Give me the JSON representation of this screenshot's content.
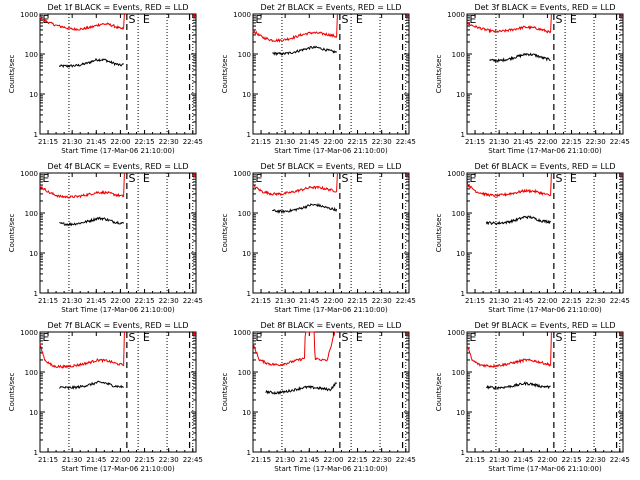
{
  "figure": {
    "x_tick_labels": [
      "21:15",
      "21:30",
      "21:45",
      "22:00",
      "22:15",
      "22:30",
      "22:45"
    ],
    "y_tick_labels": [
      "1",
      "10",
      "100",
      "1000"
    ],
    "ylabel": "Counts/sec",
    "marker_labels": [
      "E",
      "S",
      "E"
    ],
    "colors": {
      "events": "#000000",
      "lld": "#ee0000",
      "axes": "#000000"
    }
  },
  "chart_data": [
    {
      "type": "line",
      "title": "Det 1f BLACK = Events, RED = LLD",
      "xlabel": "Start Time (17-Mar-06 21:10:00)",
      "ylabel": "Counts/sec",
      "xlim_min": [
        0,
        97
      ],
      "ylim": [
        1,
        1000
      ],
      "y_scale": "log",
      "markers_min": {
        "dotted": [
          18,
          61,
          79,
          95
        ],
        "dashed": [
          54,
          93
        ]
      },
      "series": [
        {
          "name": "Events",
          "color": "#000000",
          "x_range_min": [
            12,
            52
          ],
          "knots": [
            [
              12,
              50
            ],
            [
              18,
              50
            ],
            [
              24,
              52
            ],
            [
              30,
              60
            ],
            [
              35,
              72
            ],
            [
              40,
              72
            ],
            [
              45,
              60
            ],
            [
              50,
              52
            ],
            [
              52,
              55
            ]
          ]
        },
        {
          "name": "LLD",
          "color": "#ee0000",
          "x_range_min": [
            0,
            52
          ],
          "knots": [
            [
              0,
              820
            ],
            [
              4,
              650
            ],
            [
              10,
              520
            ],
            [
              20,
              420
            ],
            [
              26,
              420
            ],
            [
              32,
              470
            ],
            [
              38,
              560
            ],
            [
              42,
              560
            ],
            [
              46,
              500
            ],
            [
              50,
              430
            ],
            [
              52,
              430
            ],
            [
              52.5,
              1050
            ]
          ]
        }
      ]
    },
    {
      "type": "line",
      "title": "Det 2f BLACK = Events, RED = LLD",
      "xlabel": "Start Time (17-Mar-06 21:10:00)",
      "ylabel": "Counts/sec",
      "xlim_min": [
        0,
        97
      ],
      "ylim": [
        1,
        1000
      ],
      "y_scale": "log",
      "markers_min": {
        "dotted": [
          18,
          61,
          79,
          95
        ],
        "dashed": [
          54,
          93
        ]
      },
      "series": [
        {
          "name": "Events",
          "color": "#000000",
          "x_range_min": [
            12,
            52
          ],
          "knots": [
            [
              12,
              105
            ],
            [
              18,
              100
            ],
            [
              24,
              108
            ],
            [
              30,
              125
            ],
            [
              36,
              145
            ],
            [
              40,
              145
            ],
            [
              46,
              125
            ],
            [
              52,
              110
            ]
          ]
        },
        {
          "name": "LLD",
          "color": "#ee0000",
          "x_range_min": [
            0,
            52
          ],
          "knots": [
            [
              0,
              380
            ],
            [
              6,
              260
            ],
            [
              12,
              220
            ],
            [
              18,
              220
            ],
            [
              24,
              250
            ],
            [
              30,
              300
            ],
            [
              36,
              340
            ],
            [
              42,
              330
            ],
            [
              48,
              300
            ],
            [
              52,
              270
            ],
            [
              52.5,
              1050
            ]
          ]
        }
      ]
    },
    {
      "type": "line",
      "title": "Det 3f BLACK = Events, RED = LLD",
      "xlabel": "Start Time (17-Mar-06 21:10:00)",
      "ylabel": "Counts/sec",
      "xlim_min": [
        0,
        97
      ],
      "ylim": [
        1,
        1000
      ],
      "y_scale": "log",
      "markers_min": {
        "dotted": [
          18,
          61,
          79,
          95
        ],
        "dashed": [
          54,
          93
        ]
      },
      "series": [
        {
          "name": "Events",
          "color": "#000000",
          "x_range_min": [
            14,
            52
          ],
          "knots": [
            [
              14,
              70
            ],
            [
              20,
              68
            ],
            [
              26,
              75
            ],
            [
              32,
              88
            ],
            [
              37,
              100
            ],
            [
              42,
              95
            ],
            [
              47,
              80
            ],
            [
              52,
              72
            ]
          ]
        },
        {
          "name": "LLD",
          "color": "#ee0000",
          "x_range_min": [
            0,
            52
          ],
          "knots": [
            [
              0,
              580
            ],
            [
              6,
              470
            ],
            [
              12,
              400
            ],
            [
              18,
              360
            ],
            [
              24,
              380
            ],
            [
              30,
              420
            ],
            [
              36,
              470
            ],
            [
              42,
              450
            ],
            [
              48,
              390
            ],
            [
              52,
              340
            ],
            [
              52.5,
              1050
            ]
          ]
        }
      ]
    },
    {
      "type": "line",
      "title": "Det 4f BLACK = Events, RED = LLD",
      "xlabel": "Start Time (17-Mar-06 21:10:00)",
      "ylabel": "Counts/sec",
      "xlim_min": [
        0,
        97
      ],
      "ylim": [
        1,
        1000
      ],
      "y_scale": "log",
      "markers_min": {
        "dotted": [
          18,
          61,
          79,
          95
        ],
        "dashed": [
          54,
          93
        ]
      },
      "series": [
        {
          "name": "Events",
          "color": "#000000",
          "x_range_min": [
            12,
            52
          ],
          "knots": [
            [
              12,
              55
            ],
            [
              18,
              52
            ],
            [
              24,
              55
            ],
            [
              30,
              62
            ],
            [
              36,
              74
            ],
            [
              40,
              72
            ],
            [
              46,
              60
            ],
            [
              52,
              55
            ]
          ]
        },
        {
          "name": "LLD",
          "color": "#ee0000",
          "x_range_min": [
            0,
            52
          ],
          "knots": [
            [
              0,
              470
            ],
            [
              6,
              320
            ],
            [
              12,
              260
            ],
            [
              18,
              250
            ],
            [
              24,
              260
            ],
            [
              30,
              290
            ],
            [
              36,
              330
            ],
            [
              42,
              320
            ],
            [
              48,
              280
            ],
            [
              52,
              260
            ],
            [
              52.5,
              1050
            ]
          ]
        }
      ]
    },
    {
      "type": "line",
      "title": "Det 5f BLACK = Events, RED = LLD",
      "xlabel": "Start Time (17-Mar-06 21:10:00)",
      "ylabel": "Counts/sec",
      "xlim_min": [
        0,
        97
      ],
      "ylim": [
        1,
        1000
      ],
      "y_scale": "log",
      "markers_min": {
        "dotted": [
          18,
          61,
          79,
          95
        ],
        "dashed": [
          54,
          93
        ]
      },
      "series": [
        {
          "name": "Events",
          "color": "#000000",
          "x_range_min": [
            12,
            52
          ],
          "knots": [
            [
              12,
              115
            ],
            [
              18,
              108
            ],
            [
              24,
              115
            ],
            [
              30,
              132
            ],
            [
              36,
              160
            ],
            [
              40,
              158
            ],
            [
              46,
              135
            ],
            [
              52,
              120
            ]
          ]
        },
        {
          "name": "LLD",
          "color": "#ee0000",
          "x_range_min": [
            0,
            52
          ],
          "knots": [
            [
              0,
              480
            ],
            [
              6,
              340
            ],
            [
              12,
              300
            ],
            [
              18,
              300
            ],
            [
              24,
              330
            ],
            [
              30,
              380
            ],
            [
              36,
              440
            ],
            [
              42,
              430
            ],
            [
              48,
              380
            ],
            [
              52,
              350
            ],
            [
              52.5,
              1050
            ]
          ]
        }
      ]
    },
    {
      "type": "line",
      "title": "Det 6f BLACK = Events, RED = LLD",
      "xlabel": "Start Time (17-Mar-06 21:10:00)",
      "ylabel": "Counts/sec",
      "xlim_min": [
        0,
        97
      ],
      "ylim": [
        1,
        1000
      ],
      "y_scale": "log",
      "markers_min": {
        "dotted": [
          18,
          61,
          79,
          95
        ],
        "dashed": [
          54,
          93
        ]
      },
      "series": [
        {
          "name": "Events",
          "color": "#000000",
          "x_range_min": [
            12,
            52
          ],
          "knots": [
            [
              12,
              58
            ],
            [
              18,
              55
            ],
            [
              24,
              58
            ],
            [
              30,
              66
            ],
            [
              36,
              80
            ],
            [
              40,
              78
            ],
            [
              46,
              64
            ],
            [
              52,
              60
            ]
          ]
        },
        {
          "name": "LLD",
          "color": "#ee0000",
          "x_range_min": [
            0,
            52
          ],
          "knots": [
            [
              0,
              520
            ],
            [
              6,
              340
            ],
            [
              12,
              290
            ],
            [
              18,
              270
            ],
            [
              24,
              290
            ],
            [
              30,
              320
            ],
            [
              36,
              360
            ],
            [
              42,
              350
            ],
            [
              48,
              300
            ],
            [
              52,
              270
            ],
            [
              52.5,
              1050
            ]
          ]
        }
      ]
    },
    {
      "type": "line",
      "title": "Det 7f BLACK = Events, RED = LLD",
      "xlabel": "Start Time (17-Mar-06 21:10:00)",
      "ylabel": "Counts/sec",
      "xlim_min": [
        0,
        97
      ],
      "ylim": [
        1,
        1000
      ],
      "y_scale": "log",
      "markers_min": {
        "dotted": [
          18,
          61,
          79,
          95
        ],
        "dashed": [
          54,
          93
        ]
      },
      "series": [
        {
          "name": "Events",
          "color": "#000000",
          "x_range_min": [
            12,
            52
          ],
          "knots": [
            [
              12,
              42
            ],
            [
              18,
              40
            ],
            [
              24,
              42
            ],
            [
              30,
              47
            ],
            [
              36,
              55
            ],
            [
              40,
              54
            ],
            [
              46,
              45
            ],
            [
              52,
              42
            ]
          ]
        },
        {
          "name": "LLD",
          "color": "#ee0000",
          "x_range_min": [
            0,
            52
          ],
          "knots": [
            [
              0,
              500
            ],
            [
              3,
              200
            ],
            [
              8,
              140
            ],
            [
              16,
              135
            ],
            [
              24,
              150
            ],
            [
              30,
              170
            ],
            [
              36,
              200
            ],
            [
              42,
              190
            ],
            [
              48,
              160
            ],
            [
              52,
              150
            ],
            [
              52.5,
              1050
            ]
          ]
        }
      ]
    },
    {
      "type": "line",
      "title": "Det 8f BLACK = Events, RED = LLD",
      "xlabel": "Start Time (17-Mar-06 21:10:00)",
      "ylabel": "Counts/sec",
      "xlim_min": [
        0,
        97
      ],
      "ylim": [
        1,
        1000
      ],
      "y_scale": "log",
      "markers_min": {
        "dotted": [
          18,
          61,
          79,
          95
        ],
        "dashed": [
          54,
          93
        ]
      },
      "series": [
        {
          "name": "Events",
          "color": "#000000",
          "x_range_min": [
            8,
            52
          ],
          "knots": [
            [
              8,
              32
            ],
            [
              14,
              30
            ],
            [
              20,
              32
            ],
            [
              26,
              36
            ],
            [
              30,
              40
            ],
            [
              34,
              42
            ],
            [
              40,
              40
            ],
            [
              44,
              38
            ],
            [
              48,
              36
            ],
            [
              52,
              55
            ]
          ]
        },
        {
          "name": "LLD",
          "color": "#ee0000",
          "x_range_min": [
            0,
            52
          ],
          "knots": [
            [
              0,
              500
            ],
            [
              4,
              200
            ],
            [
              10,
              160
            ],
            [
              16,
              150
            ],
            [
              22,
              170
            ],
            [
              28,
              200
            ],
            [
              32,
              220
            ],
            [
              32.5,
              1050
            ],
            [
              38,
              1050
            ],
            [
              38.5,
              220
            ],
            [
              46,
              190
            ],
            [
              51,
              1050
            ]
          ]
        }
      ]
    },
    {
      "type": "line",
      "title": "Det 9f BLACK = Events, RED = LLD",
      "xlabel": "Start Time (17-Mar-06 21:10:00)",
      "ylabel": "Counts/sec",
      "xlim_min": [
        0,
        97
      ],
      "ylim": [
        1,
        1000
      ],
      "y_scale": "log",
      "markers_min": {
        "dotted": [
          18,
          61,
          79,
          95
        ],
        "dashed": [
          54,
          93
        ]
      },
      "series": [
        {
          "name": "Events",
          "color": "#000000",
          "x_range_min": [
            12,
            52
          ],
          "knots": [
            [
              12,
              42
            ],
            [
              18,
              40
            ],
            [
              24,
              42
            ],
            [
              30,
              46
            ],
            [
              36,
              52
            ],
            [
              40,
              50
            ],
            [
              46,
              44
            ],
            [
              52,
              42
            ]
          ]
        },
        {
          "name": "LLD",
          "color": "#ee0000",
          "x_range_min": [
            0,
            52
          ],
          "knots": [
            [
              0,
              500
            ],
            [
              3,
              200
            ],
            [
              8,
              150
            ],
            [
              16,
              140
            ],
            [
              24,
              155
            ],
            [
              30,
              175
            ],
            [
              36,
              200
            ],
            [
              42,
              190
            ],
            [
              48,
              165
            ],
            [
              52,
              150
            ],
            [
              52.5,
              1050
            ]
          ]
        }
      ]
    }
  ]
}
